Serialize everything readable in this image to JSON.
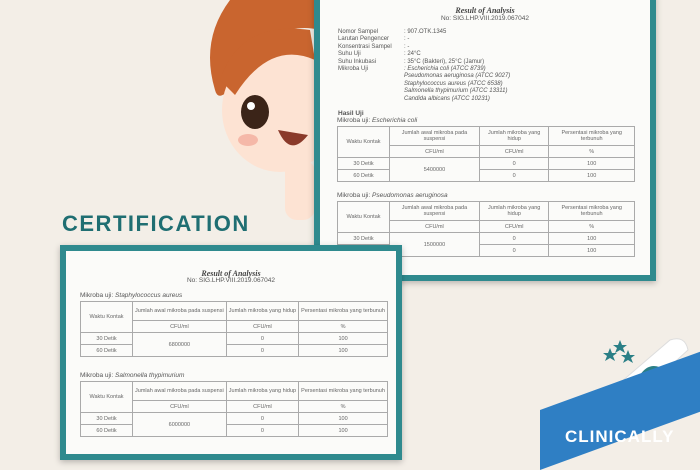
{
  "headline": "CERTIFICATION",
  "badge": "CLINICALLY",
  "colors": {
    "teal": "#2f8a8e",
    "blue": "#2f7fc4",
    "background": "#f3eee7"
  },
  "doc_top": {
    "title": "Result of Analysis",
    "number": "No: SIG.LHP.VIII.2019.067042",
    "fields": [
      {
        "key": "Nomor Sampel",
        "value": ": 907.OTK.1345"
      },
      {
        "key": "Larutan Pengencer",
        "value": ": -"
      },
      {
        "key": "Konsentrasi Sampel",
        "value": ": -"
      },
      {
        "key": "Suhu Uji",
        "value": ": 24°C"
      },
      {
        "key": "Suhu Inkubasi",
        "value": ": 35°C (Bakteri), 25°C (Jamur)"
      },
      {
        "key": "Mikroba Uji",
        "value": ": Escherichia coli (ATCC 8739)"
      },
      {
        "key": "",
        "value": "  Pseudomonas aeruginosa (ATCC 9027)"
      },
      {
        "key": "",
        "value": "  Staphylococcus aureus (ATCC 6538)"
      },
      {
        "key": "",
        "value": "  Salmonella thypimurium (ATCC 13311)"
      },
      {
        "key": "",
        "value": "  Candida albicans (ATCC 10231)"
      }
    ],
    "section": "Hasil Uji",
    "tables": [
      {
        "prefix": "Mikroba uji: ",
        "organism": "Escherichia coli",
        "initial": "5400000"
      },
      {
        "prefix": "Mikroba uji: ",
        "organism": "Pseudomonas aeruginosa",
        "initial": "1500000"
      }
    ]
  },
  "doc_bottom": {
    "title": "Result of Analysis",
    "number": "No: SIG.LHP.VIII.2019.067042",
    "tables": [
      {
        "prefix": "Mikroba uji: ",
        "organism": "Staphylococcus aureus",
        "initial": "6800000"
      },
      {
        "prefix": "Mikroba uji: ",
        "organism": "Salmonella thypimurium",
        "initial": "6000000"
      }
    ]
  },
  "table_headers": {
    "time": "Waktu Kontak",
    "initial": "Jumlah awal mikroba pada suspensi",
    "alive": "Jumlah mikroba yang hidup",
    "killed": "Persentasi mikroba yang terbunuh",
    "unit_cfu": "CFU/ml",
    "unit_pct": "%"
  },
  "table_rows": [
    {
      "time": "30 Detik",
      "alive": "0",
      "killed": "100"
    },
    {
      "time": "60 Detik",
      "alive": "0",
      "killed": "100"
    }
  ]
}
